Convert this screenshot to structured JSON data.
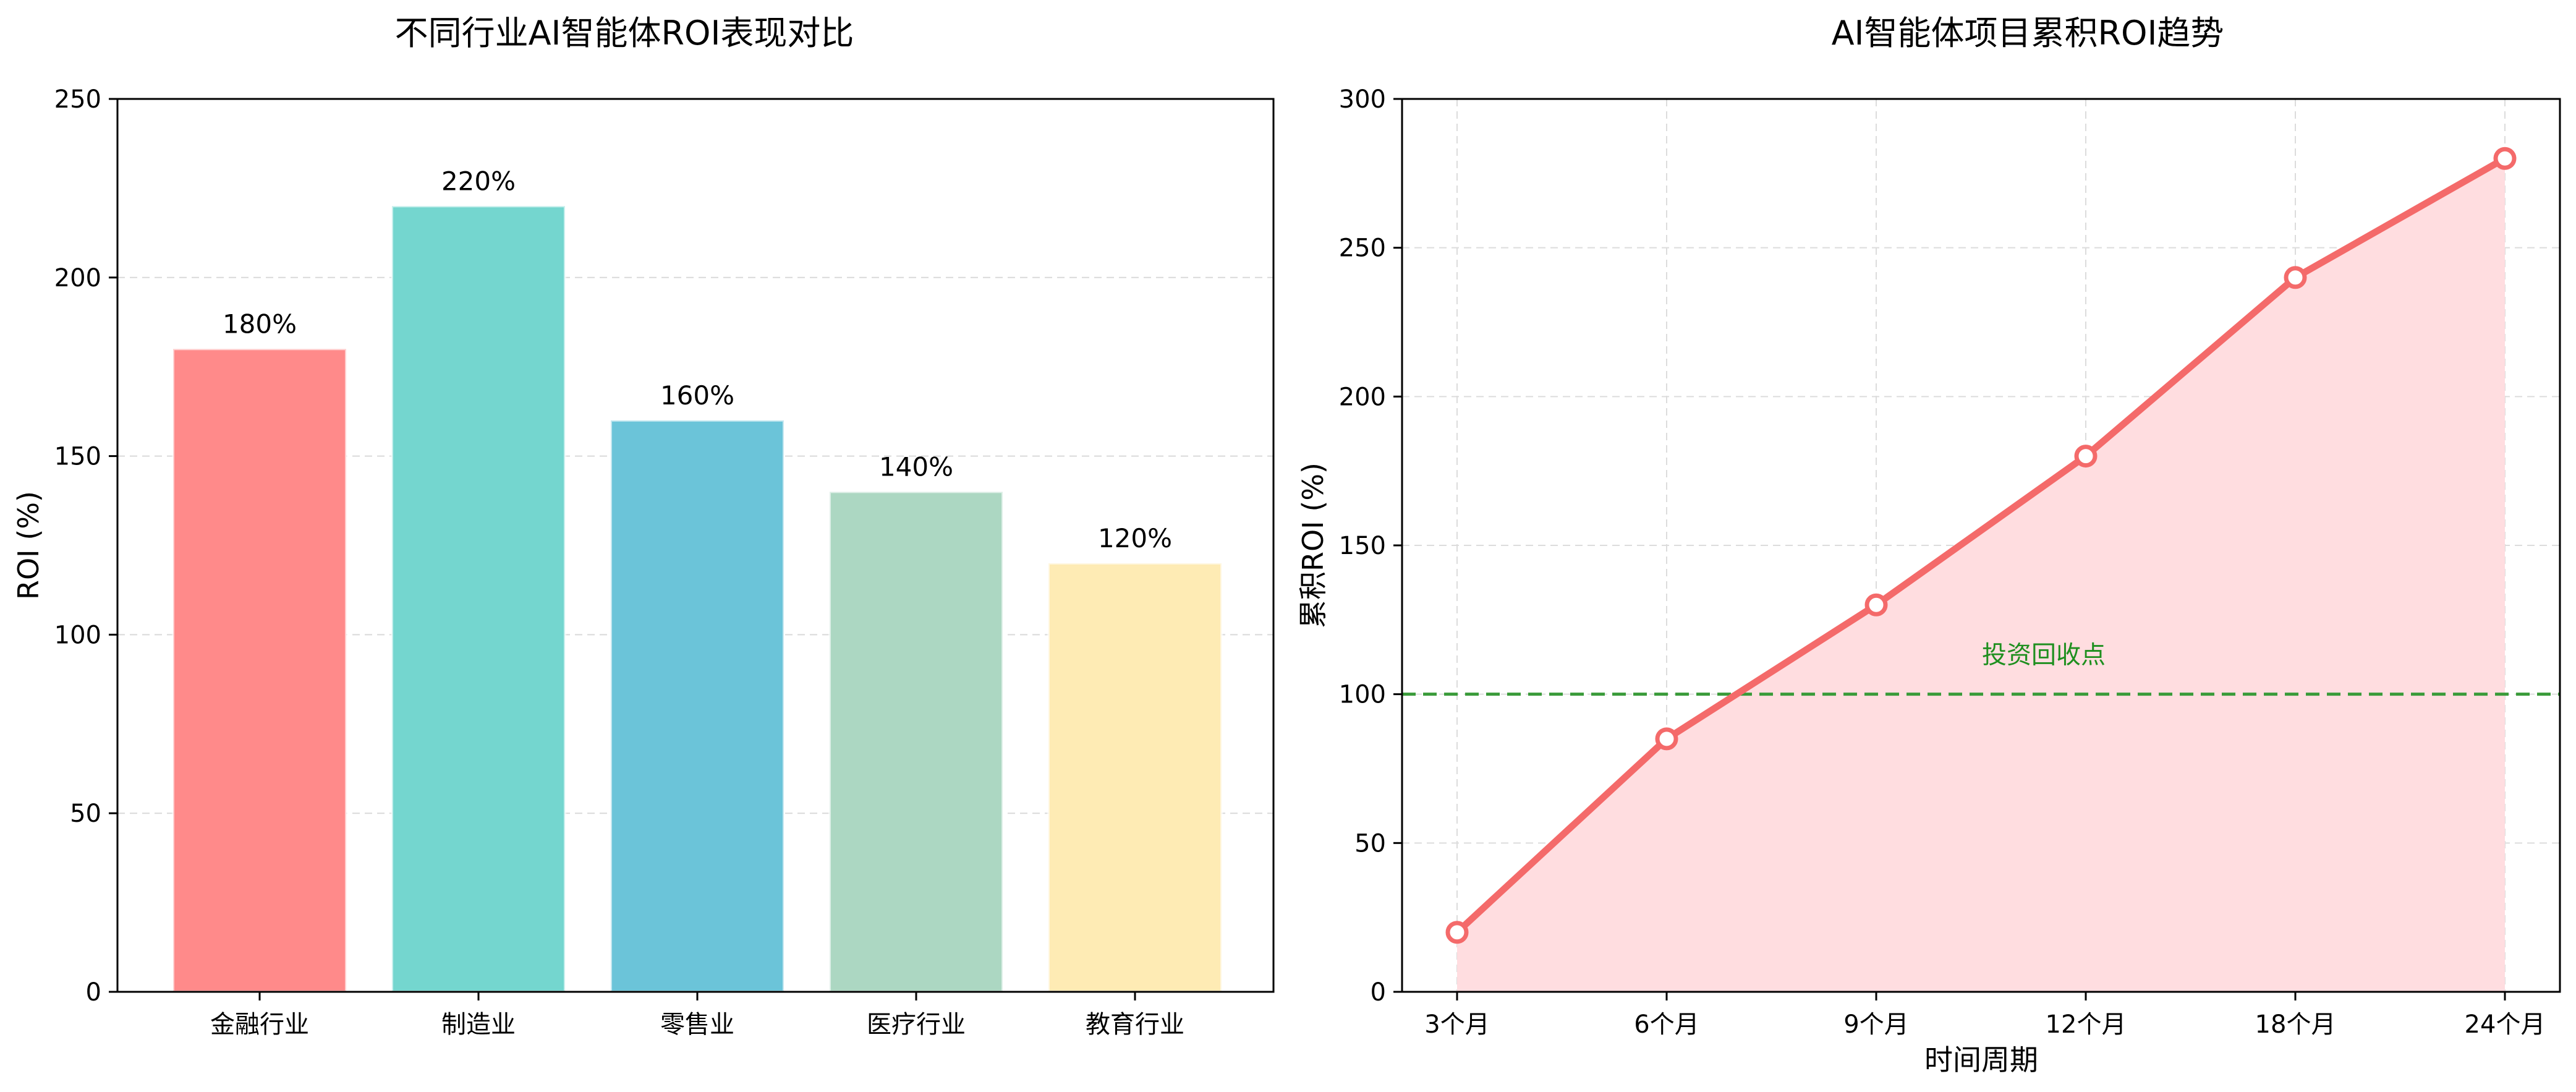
{
  "chart_data": [
    {
      "type": "bar",
      "title": "不同行业AI智能体ROI表现对比",
      "xlabel": "",
      "ylabel": "ROI (%)",
      "ylim": [
        0,
        250
      ],
      "yticks": [
        0,
        50,
        100,
        150,
        200,
        250
      ],
      "grid": "y",
      "categories": [
        "金融行业",
        "制造业",
        "零售业",
        "医疗行业",
        "教育行业"
      ],
      "values": [
        180,
        220,
        160,
        140,
        120
      ],
      "data_labels": [
        "180%",
        "220%",
        "160%",
        "140%",
        "120%"
      ],
      "colors": [
        "#FF8A8A",
        "#74D6CF",
        "#6BC4D9",
        "#ACD7C2",
        "#FEEBB4"
      ]
    },
    {
      "type": "line",
      "title": "AI智能体项目累积ROI趋势",
      "xlabel": "时间周期",
      "ylabel": "累积ROI (%)",
      "ylim": [
        0,
        300
      ],
      "yticks": [
        0,
        50,
        100,
        150,
        200,
        250,
        300
      ],
      "grid": "both",
      "x": [
        "3个月",
        "6个月",
        "9个月",
        "12个月",
        "18个月",
        "24个月"
      ],
      "series": [
        {
          "values": [
            20,
            85,
            130,
            180,
            240,
            280
          ],
          "color": "#F46A6A",
          "fill": "#FFDDE0",
          "marker": "hollow-circle"
        }
      ],
      "reference_line": {
        "y": 100,
        "label": "投资回收点",
        "color": "#3A9B3A",
        "style": "dashed"
      }
    }
  ]
}
